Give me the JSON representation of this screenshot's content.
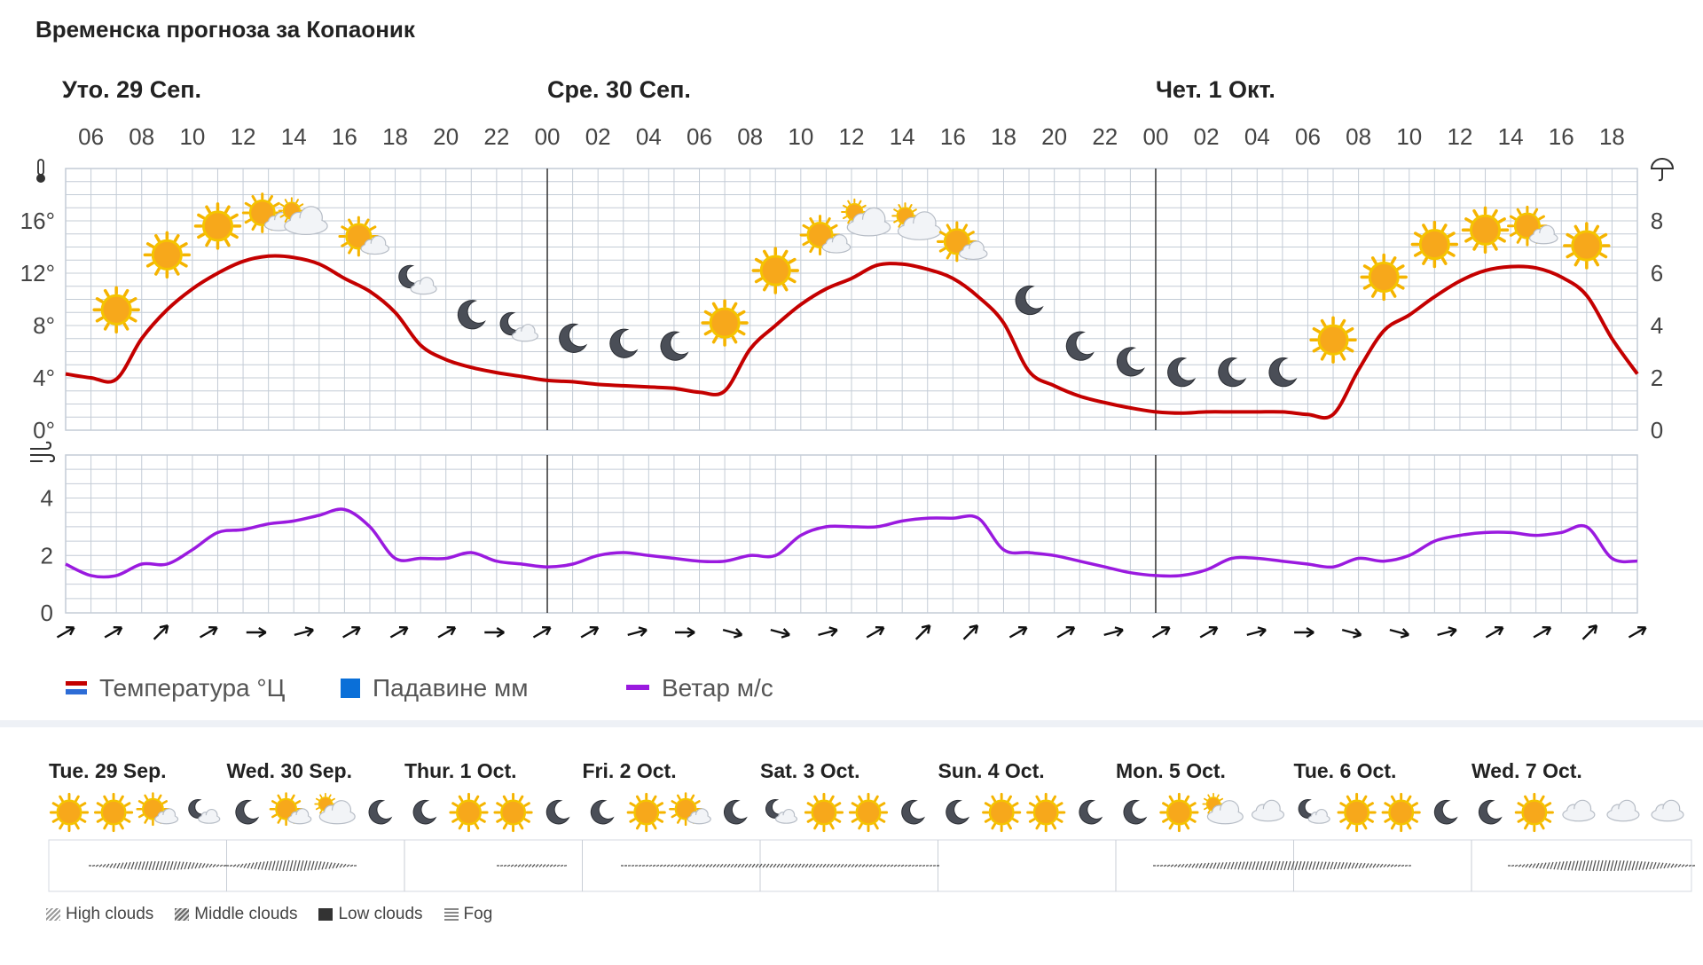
{
  "title": "Временска прогноза за Копаоник",
  "chart_data": {
    "type": "line",
    "day_headers": [
      {
        "label": "Уто. 29 Сеп.",
        "hour": 5
      },
      {
        "label": "Сре. 30 Сеп.",
        "hour": 24
      },
      {
        "label": "Чет. 1 Окт.",
        "hour": 48
      }
    ],
    "hour_ticks": [
      "06",
      "08",
      "10",
      "12",
      "14",
      "16",
      "18",
      "20",
      "22",
      "00",
      "02",
      "04",
      "06",
      "08",
      "10",
      "12",
      "14",
      "16",
      "18",
      "20",
      "22",
      "00",
      "02",
      "04",
      "06",
      "08",
      "10",
      "12",
      "14",
      "16",
      "18"
    ],
    "temperature": {
      "name": "Температура °Ц",
      "axis_ticks": [
        "0°",
        "4°",
        "8°",
        "12°",
        "16°"
      ],
      "ylim": [
        0,
        20
      ],
      "x_hours": [
        5,
        6,
        7,
        8,
        9,
        10,
        11,
        12,
        13,
        14,
        15,
        16,
        17,
        18,
        19,
        20,
        21,
        22,
        23,
        24,
        25,
        26,
        27,
        28,
        29,
        30,
        31,
        32,
        33,
        34,
        35,
        36,
        37,
        38,
        39,
        40,
        41,
        42,
        43,
        44,
        45,
        46,
        47,
        48,
        49,
        50,
        51,
        52,
        53,
        54,
        55,
        56,
        57,
        58,
        59,
        60,
        61,
        62,
        63,
        64,
        65,
        66,
        67
      ],
      "values": [
        4.3,
        4.0,
        3.9,
        7.0,
        9.2,
        10.8,
        12.0,
        12.9,
        13.3,
        13.2,
        12.7,
        11.6,
        10.6,
        9.0,
        6.5,
        5.4,
        4.8,
        4.4,
        4.1,
        3.8,
        3.7,
        3.5,
        3.4,
        3.3,
        3.2,
        2.9,
        3.0,
        6.2,
        8.0,
        9.6,
        10.8,
        11.6,
        12.6,
        12.7,
        12.3,
        11.6,
        10.2,
        8.2,
        4.5,
        3.4,
        2.6,
        2.1,
        1.7,
        1.4,
        1.3,
        1.4,
        1.4,
        1.4,
        1.4,
        1.2,
        1.2,
        4.6,
        7.6,
        8.8,
        10.2,
        11.4,
        12.2,
        12.5,
        12.4,
        11.7,
        10.3,
        7.0,
        4.3
      ]
    },
    "precipitation": {
      "name": "Падавине мм",
      "axis_ticks": [
        "0",
        "2",
        "4",
        "6",
        "8"
      ],
      "ylim": [
        0,
        10
      ]
    },
    "wind": {
      "name": "Ветар м/с",
      "axis_ticks": [
        "0",
        "2",
        "4"
      ],
      "ylim": [
        0,
        5.5
      ],
      "x_hours": [
        5,
        6,
        7,
        8,
        9,
        10,
        11,
        12,
        13,
        14,
        15,
        16,
        17,
        18,
        19,
        20,
        21,
        22,
        23,
        24,
        25,
        26,
        27,
        28,
        29,
        30,
        31,
        32,
        33,
        34,
        35,
        36,
        37,
        38,
        39,
        40,
        41,
        42,
        43,
        44,
        45,
        46,
        47,
        48,
        49,
        50,
        51,
        52,
        53,
        54,
        55,
        56,
        57,
        58,
        59,
        60,
        61,
        62,
        63,
        64,
        65,
        66,
        67
      ],
      "values": [
        1.7,
        1.3,
        1.3,
        1.7,
        1.7,
        2.2,
        2.8,
        2.9,
        3.1,
        3.2,
        3.4,
        3.6,
        3.0,
        1.9,
        1.9,
        1.9,
        2.1,
        1.8,
        1.7,
        1.6,
        1.7,
        2.0,
        2.1,
        2.0,
        1.9,
        1.8,
        1.8,
        2.0,
        2.0,
        2.7,
        3.0,
        3.0,
        3.0,
        3.2,
        3.3,
        3.3,
        3.3,
        2.2,
        2.1,
        2.0,
        1.8,
        1.6,
        1.4,
        1.3,
        1.3,
        1.5,
        1.9,
        1.9,
        1.8,
        1.7,
        1.6,
        1.9,
        1.8,
        2.0,
        2.5,
        2.7,
        2.8,
        2.8,
        2.7,
        2.8,
        3.0,
        1.9,
        1.8
      ]
    },
    "temperature_icons": [
      {
        "h": 7,
        "t": 9.2,
        "icon": "sun"
      },
      {
        "h": 9,
        "t": 13.4,
        "icon": "sun"
      },
      {
        "h": 11,
        "t": 15.6,
        "icon": "sun"
      },
      {
        "h": 13,
        "t": 16.3,
        "icon": "sun-cloud"
      },
      {
        "h": 14.4,
        "t": 16.0,
        "icon": "cloud-sun"
      },
      {
        "h": 16.8,
        "t": 14.5,
        "icon": "sun-cloud"
      },
      {
        "h": 18.8,
        "t": 11.4,
        "icon": "moon-cloud"
      },
      {
        "h": 21,
        "t": 8.8,
        "icon": "moon"
      },
      {
        "h": 22.8,
        "t": 7.8,
        "icon": "moon-cloud"
      },
      {
        "h": 25,
        "t": 7.0,
        "icon": "moon"
      },
      {
        "h": 27,
        "t": 6.6,
        "icon": "moon"
      },
      {
        "h": 29,
        "t": 6.4,
        "icon": "moon"
      },
      {
        "h": 31,
        "t": 8.2,
        "icon": "sun"
      },
      {
        "h": 33,
        "t": 12.2,
        "icon": "sun"
      },
      {
        "h": 35,
        "t": 14.6,
        "icon": "sun-cloud"
      },
      {
        "h": 36.6,
        "t": 15.9,
        "icon": "cloud-sun"
      },
      {
        "h": 38.6,
        "t": 15.6,
        "icon": "cloud-sun"
      },
      {
        "h": 40.4,
        "t": 14.1,
        "icon": "sun-cloud"
      },
      {
        "h": 43,
        "t": 9.9,
        "icon": "moon"
      },
      {
        "h": 45,
        "t": 6.4,
        "icon": "moon"
      },
      {
        "h": 47,
        "t": 5.2,
        "icon": "moon"
      },
      {
        "h": 49,
        "t": 4.4,
        "icon": "moon"
      },
      {
        "h": 51,
        "t": 4.4,
        "icon": "moon"
      },
      {
        "h": 53,
        "t": 4.4,
        "icon": "moon"
      },
      {
        "h": 55,
        "t": 6.9,
        "icon": "sun"
      },
      {
        "h": 57,
        "t": 11.7,
        "icon": "sun"
      },
      {
        "h": 59,
        "t": 14.2,
        "icon": "sun"
      },
      {
        "h": 61,
        "t": 15.3,
        "icon": "sun"
      },
      {
        "h": 62.9,
        "t": 15.3,
        "icon": "sun-cloud"
      },
      {
        "h": 65,
        "t": 14.1,
        "icon": "sun"
      }
    ],
    "wind_directions_deg": [
      60,
      60,
      45,
      60,
      90,
      75,
      60,
      60,
      60,
      90,
      60,
      60,
      75,
      90,
      105,
      105,
      75,
      60,
      45,
      45,
      60,
      60,
      75,
      60,
      60,
      75,
      90,
      105,
      105,
      75,
      60,
      60,
      45,
      60
    ],
    "legend": [
      {
        "name": "Температура °Ц",
        "color": "#c40000",
        "accent": "#2d6cd6"
      },
      {
        "name": "Падавине мм",
        "color": "#0a6fd8"
      },
      {
        "name": "Ветар м/с",
        "color": "#9a1adf"
      }
    ]
  },
  "weekly": {
    "days": [
      "Tue. 29 Sep.",
      "Wed. 30 Sep.",
      "Thur. 1 Oct.",
      "Fri. 2 Oct.",
      "Sat. 3 Oct.",
      "Sun. 4 Oct.",
      "Mon. 5 Oct.",
      "Tue. 6 Oct.",
      "Wed. 7 Oct."
    ],
    "icons": [
      "sun",
      "sun",
      "sun-cloud",
      "moon-cloud",
      "moon",
      "sun-cloud",
      "cloud-sun",
      "moon",
      "moon",
      "sun",
      "sun",
      "moon",
      "moon",
      "sun",
      "sun-cloud",
      "moon",
      "moon-cloud",
      "sun",
      "sun",
      "moon",
      "moon",
      "sun",
      "sun",
      "moon",
      "moon",
      "sun",
      "cloud-sun",
      "cloud",
      "moon-cloud",
      "sun",
      "sun",
      "moon",
      "moon",
      "sun",
      "cloud",
      "cloud",
      "cloud"
    ],
    "cloud_legend": [
      "High clouds",
      "Middle clouds",
      "Low clouds",
      "Fog"
    ]
  }
}
